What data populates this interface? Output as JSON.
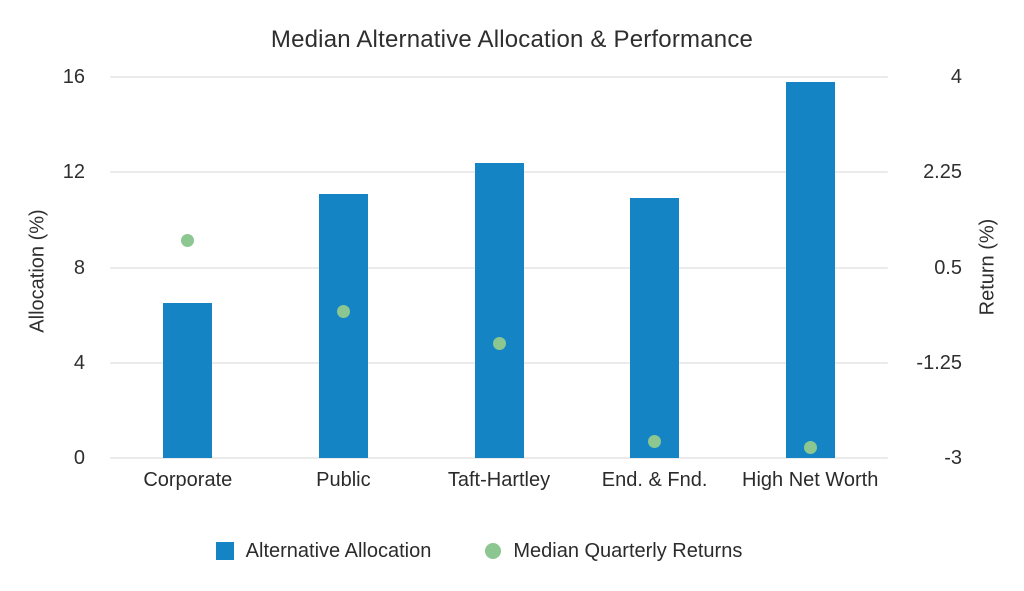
{
  "chart_data": {
    "type": "bar",
    "title": "Median Alternative Allocation & Performance",
    "categories": [
      "Corporate",
      "Public",
      "Taft-Hartley",
      "End. & Fnd.",
      "High Net Worth"
    ],
    "series": [
      {
        "name": "Alternative Allocation",
        "type": "bar",
        "axis": "left",
        "color": "#1484c4",
        "values": [
          6.5,
          11.1,
          12.4,
          10.9,
          15.8
        ]
      },
      {
        "name": "Median Quarterly Returns",
        "type": "scatter",
        "axis": "right",
        "color": "#8cc690",
        "values": [
          1.0,
          -0.3,
          -0.9,
          -2.7,
          -2.8
        ]
      }
    ],
    "left_axis": {
      "label": "Allocation (%)",
      "tick_labels": [
        "16",
        "12",
        "8",
        "4",
        "0"
      ],
      "range": [
        0,
        16
      ]
    },
    "right_axis": {
      "label": "Return (%)",
      "tick_labels": [
        "4",
        "2.25",
        "0.5",
        "-1.25",
        "-3"
      ],
      "range": [
        -3,
        4
      ]
    },
    "grid": true,
    "legend_position": "bottom",
    "background_color": "#ffffff",
    "gridline_color": "#ebebeb",
    "text_color": "#2e2e2e"
  }
}
